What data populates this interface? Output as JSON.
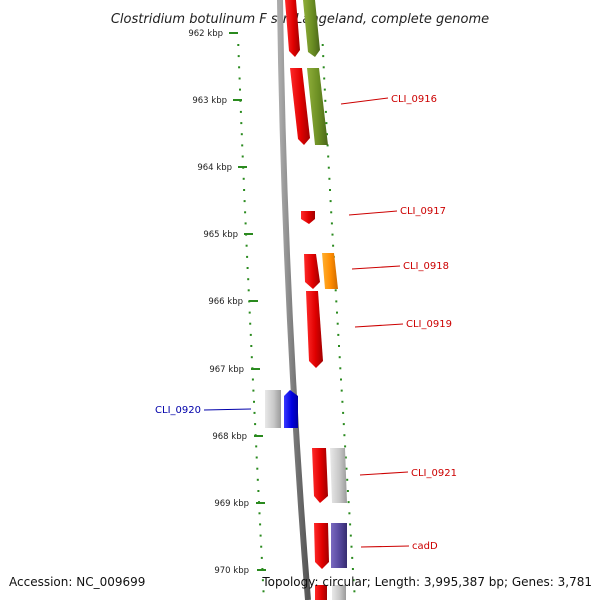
{
  "title": "Clostridium botulinum F str. Langeland, complete genome",
  "footer": {
    "accession": "Accession: NC_009699",
    "summary": "Topology: circular; Length: 3,995,387 bp; Genes: 3,781"
  },
  "colors": {
    "tick": "#2a8a1e",
    "right_label": "#cc0000",
    "left_label": "#0000aa",
    "backbone": "#808080"
  },
  "ticks": [
    "962 kbp",
    "963 kbp",
    "964 kbp",
    "965 kbp",
    "966 kbp",
    "967 kbp",
    "968 kbp",
    "969 kbp",
    "970 kbp"
  ],
  "gene_labels": [
    {
      "id": "cli0916",
      "text": "CLI_0916",
      "side": "right"
    },
    {
      "id": "cli0917",
      "text": "CLI_0917",
      "side": "right"
    },
    {
      "id": "cli0918",
      "text": "CLI_0918",
      "side": "right"
    },
    {
      "id": "cli0919",
      "text": "CLI_0919",
      "side": "right"
    },
    {
      "id": "cli0920",
      "text": "CLI_0920",
      "side": "left"
    },
    {
      "id": "cli0921",
      "text": "CLI_0921",
      "side": "right"
    },
    {
      "id": "cadd",
      "text": "cadD",
      "side": "right"
    }
  ]
}
